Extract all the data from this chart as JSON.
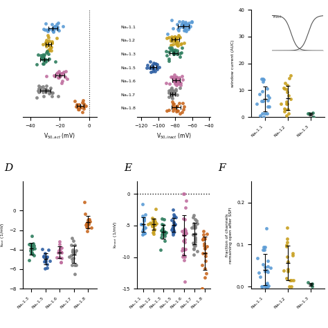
{
  "colors": {
    "Na1.1": "#5b9bd5",
    "Na1.2": "#c8a020",
    "Na1.3": "#2e7d5e",
    "Na1.5": "#2e5fa3",
    "Na1.6": "#c070a0",
    "Na1.7": "#808080",
    "Na1.8": "#c86820"
  },
  "act_data": {
    "Na1.1": {
      "mean": -25,
      "std": 3,
      "n": 25
    },
    "Na1.2": {
      "mean": -28,
      "std": 2.5,
      "n": 25
    },
    "Na1.3": {
      "mean": -30,
      "std": 3,
      "n": 20
    },
    "Na1.6": {
      "mean": -20,
      "std": 3,
      "n": 20
    },
    "Na1.7": {
      "mean": -30,
      "std": 4,
      "n": 25
    },
    "Na1.8": {
      "mean": -5,
      "std": 2.5,
      "n": 15
    }
  },
  "inact_data": {
    "Na1.1": {
      "mean": -70,
      "std": 6,
      "n": 30
    },
    "Na1.2": {
      "mean": -80,
      "std": 5,
      "n": 30
    },
    "Na1.3": {
      "mean": -82,
      "std": 5,
      "n": 25
    },
    "Na1.5": {
      "mean": -107,
      "std": 4,
      "n": 20
    },
    "Na1.6": {
      "mean": -78,
      "std": 5,
      "n": 30
    },
    "Na1.7": {
      "mean": -83,
      "std": 4,
      "n": 30
    },
    "Na1.8": {
      "mean": -78,
      "std": 6,
      "n": 20
    }
  },
  "window_data": {
    "Na1.1": {
      "mean": 5.5,
      "std": 5.5,
      "n": 20
    },
    "Na1.2": {
      "mean": 5.0,
      "std": 5.5,
      "n": 20
    },
    "Na1.3": {
      "mean": 1.5,
      "std": 1.5,
      "n": 4
    }
  },
  "kact_data": {
    "Na1.3": {
      "mean": -4.0,
      "std": 0.6,
      "n": 15
    },
    "Na1.5": {
      "mean": -4.8,
      "std": 0.8,
      "n": 15
    },
    "Na1.6": {
      "mean": -4.2,
      "std": 0.6,
      "n": 15
    },
    "Na1.7": {
      "mean": -4.2,
      "std": 0.8,
      "n": 20
    },
    "Na1.8": {
      "mean": -1.5,
      "std": 0.7,
      "n": 18
    }
  },
  "kinact_data": {
    "Na1.1": {
      "mean": -4.9,
      "std": 1.0,
      "n": 22
    },
    "Na1.2": {
      "mean": -4.8,
      "std": 0.9,
      "n": 22
    },
    "Na1.3": {
      "mean": -5.8,
      "std": 1.2,
      "n": 20
    },
    "Na1.5": {
      "mean": -4.9,
      "std": 1.0,
      "n": 22
    },
    "Na1.6": {
      "mean": -6.0,
      "std": 2.8,
      "n": 28
    },
    "Na1.7": {
      "mean": -6.0,
      "std": 1.8,
      "n": 30
    },
    "Na1.8": {
      "mean": -9.5,
      "std": 2.8,
      "n": 22
    }
  },
  "ssfi_data": {
    "Na1.1": {
      "mean": 0.035,
      "std": 0.045,
      "n": 25
    },
    "Na1.2": {
      "mean": 0.04,
      "std": 0.04,
      "n": 18
    },
    "Na1.3": {
      "mean": 0.005,
      "std": 0.005,
      "n": 4
    }
  },
  "V50act_xlabel": "V$_{50,act}$ (mV)",
  "V50inact_xlabel": "V$_{50,inact}$ (mV)",
  "window_ylabel": "window current (AUC)",
  "kact_ylabel": "k$_{act}$ (1/mV)",
  "kinact_ylabel": "k$_{inact}$ (1/mV)",
  "ssfi_ylabel": "fraction of channels\nremaining open after SSFI"
}
